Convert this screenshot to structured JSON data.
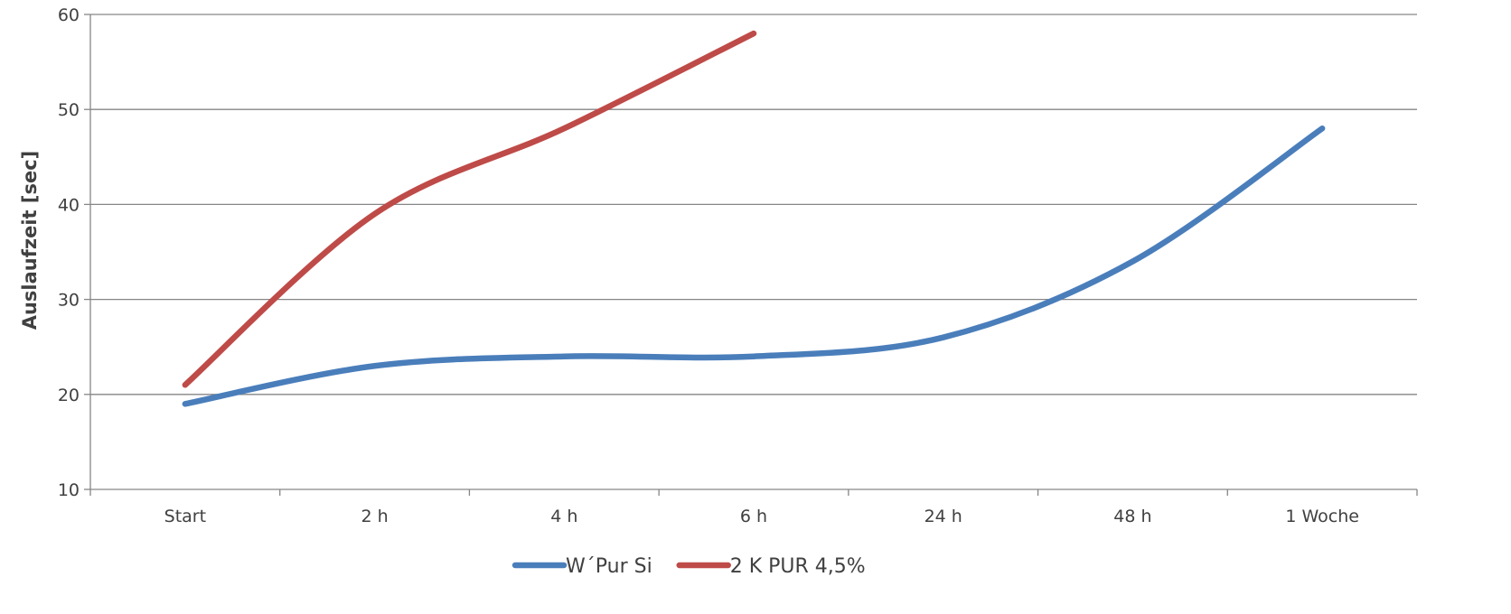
{
  "chart_data": {
    "type": "line",
    "title": "",
    "xlabel": "",
    "ylabel": "Auslaufzeit [sec]",
    "categories": [
      "Start",
      "2 h",
      "4 h",
      "6 h",
      "24 h",
      "48 h",
      "1 Woche"
    ],
    "ylim": [
      10,
      60
    ],
    "yticks": [
      10,
      20,
      30,
      40,
      50,
      60
    ],
    "grid": true,
    "legend_position": "bottom",
    "reference_line": {
      "y": 40,
      "color": "#000000"
    },
    "series": [
      {
        "name": "W´Pur Si",
        "color": "#4a7ebb",
        "values": [
          19,
          23,
          24,
          24,
          26,
          34,
          48
        ]
      },
      {
        "name": "2 K PUR 4,5%",
        "color": "#be4b48",
        "values": [
          21,
          39,
          48,
          58,
          null,
          null,
          null
        ]
      }
    ]
  }
}
